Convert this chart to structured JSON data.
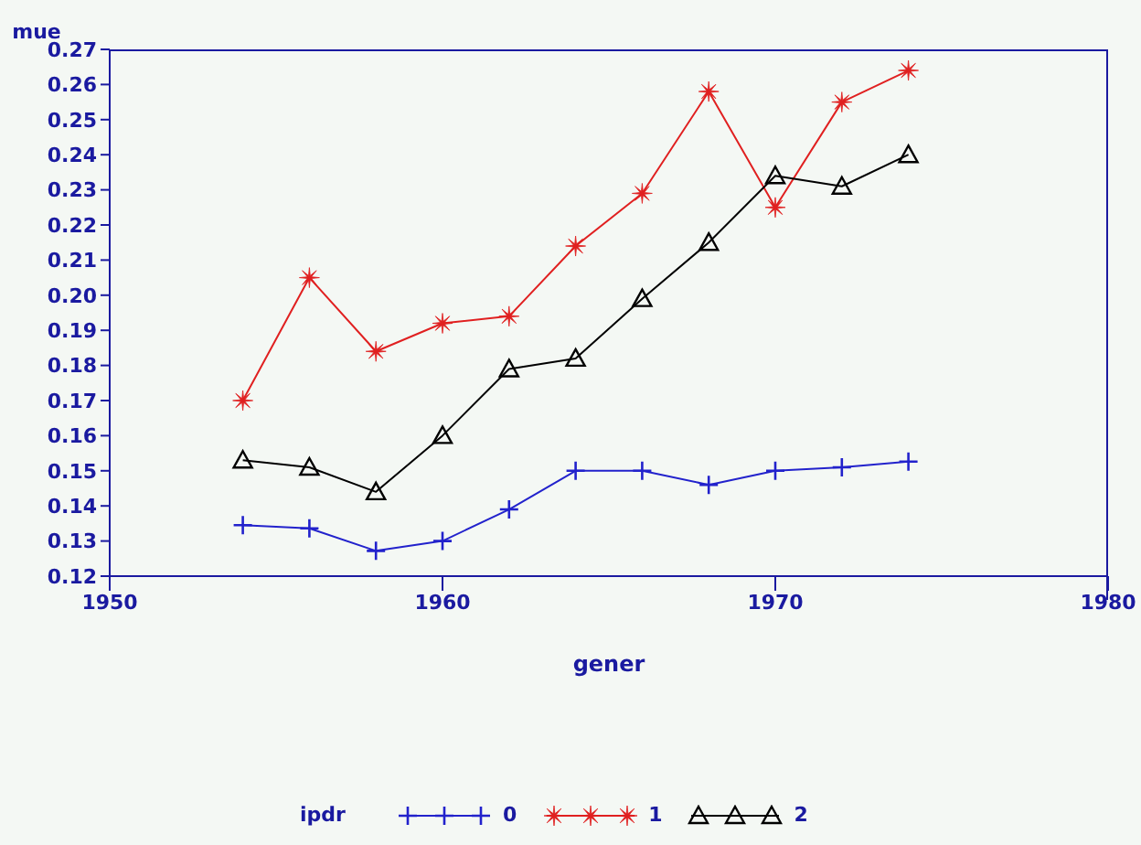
{
  "chart_data": {
    "type": "line",
    "xlabel": "gener",
    "ylabel": "mue",
    "legend_title": "ipdr",
    "legend": "bottom",
    "grid": false,
    "x": [
      1954,
      1956,
      1958,
      1960,
      1962,
      1964,
      1966,
      1968,
      1970,
      1972,
      1974
    ],
    "xlim": [
      1950,
      1980
    ],
    "xticks": [
      1950,
      1960,
      1970,
      1980
    ],
    "ylim": [
      0.12,
      0.27
    ],
    "yticks": [
      0.12,
      0.13,
      0.14,
      0.15,
      0.16,
      0.17,
      0.18,
      0.19,
      {
        "value": 0.2,
        "label": "0.20"
      },
      0.21,
      0.22,
      0.23,
      0.24,
      0.25,
      0.26,
      0.27
    ],
    "series": [
      {
        "name": "0",
        "color": "#2222cc",
        "marker": "cross",
        "values": [
          0.1345,
          0.1336,
          0.1272,
          0.13,
          0.139,
          0.15,
          0.15,
          0.146,
          0.15,
          0.151,
          0.1526
        ]
      },
      {
        "name": "1",
        "color": "#e02020",
        "marker": "star",
        "values": [
          0.17,
          0.205,
          0.184,
          0.192,
          0.194,
          0.214,
          0.229,
          0.258,
          0.225,
          0.255,
          0.264
        ]
      },
      {
        "name": "2",
        "color": "#000000",
        "marker": "triangle",
        "values": [
          0.153,
          0.151,
          0.144,
          0.16,
          0.179,
          0.182,
          0.199,
          0.215,
          0.234,
          0.231,
          0.24
        ]
      }
    ]
  }
}
